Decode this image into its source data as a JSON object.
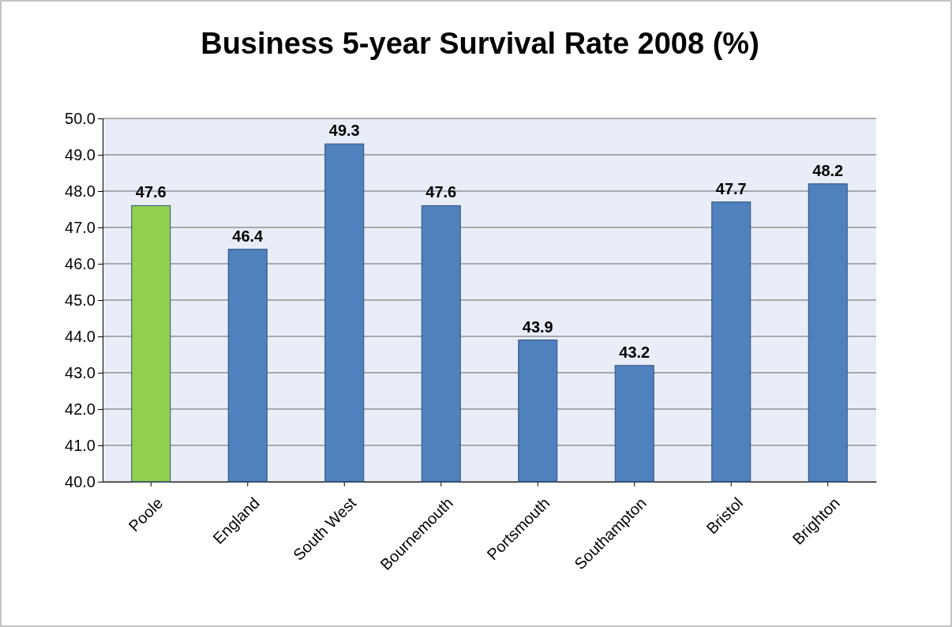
{
  "chart_data": {
    "type": "bar",
    "title": "Business 5-year Survival Rate 2008 (%)",
    "categories": [
      "Poole",
      "England",
      "South West",
      "Bournemouth",
      "Portsmouth",
      "Southampton",
      "Bristol",
      "Brighton"
    ],
    "values": [
      47.6,
      46.4,
      49.3,
      47.6,
      43.9,
      43.2,
      47.7,
      48.2
    ],
    "colors": [
      "#92d050",
      "#4f81bd",
      "#4f81bd",
      "#4f81bd",
      "#4f81bd",
      "#4f81bd",
      "#4f81bd",
      "#4f81bd"
    ],
    "ylim": [
      40,
      50
    ],
    "yticks": [
      {
        "value": 40,
        "label": "40.0"
      },
      {
        "value": 41,
        "label": "41.0"
      },
      {
        "value": 42,
        "label": "42.0"
      },
      {
        "value": 43,
        "label": "43.0"
      },
      {
        "value": 44,
        "label": "44.0"
      },
      {
        "value": 45,
        "label": "45.0"
      },
      {
        "value": 46,
        "label": "46.0"
      },
      {
        "value": 47,
        "label": "47.0"
      },
      {
        "value": 48,
        "label": "48.0"
      },
      {
        "value": 49,
        "label": "49.0"
      },
      {
        "value": 50,
        "label": "50.0"
      }
    ],
    "grid": true,
    "data_labels": true
  }
}
